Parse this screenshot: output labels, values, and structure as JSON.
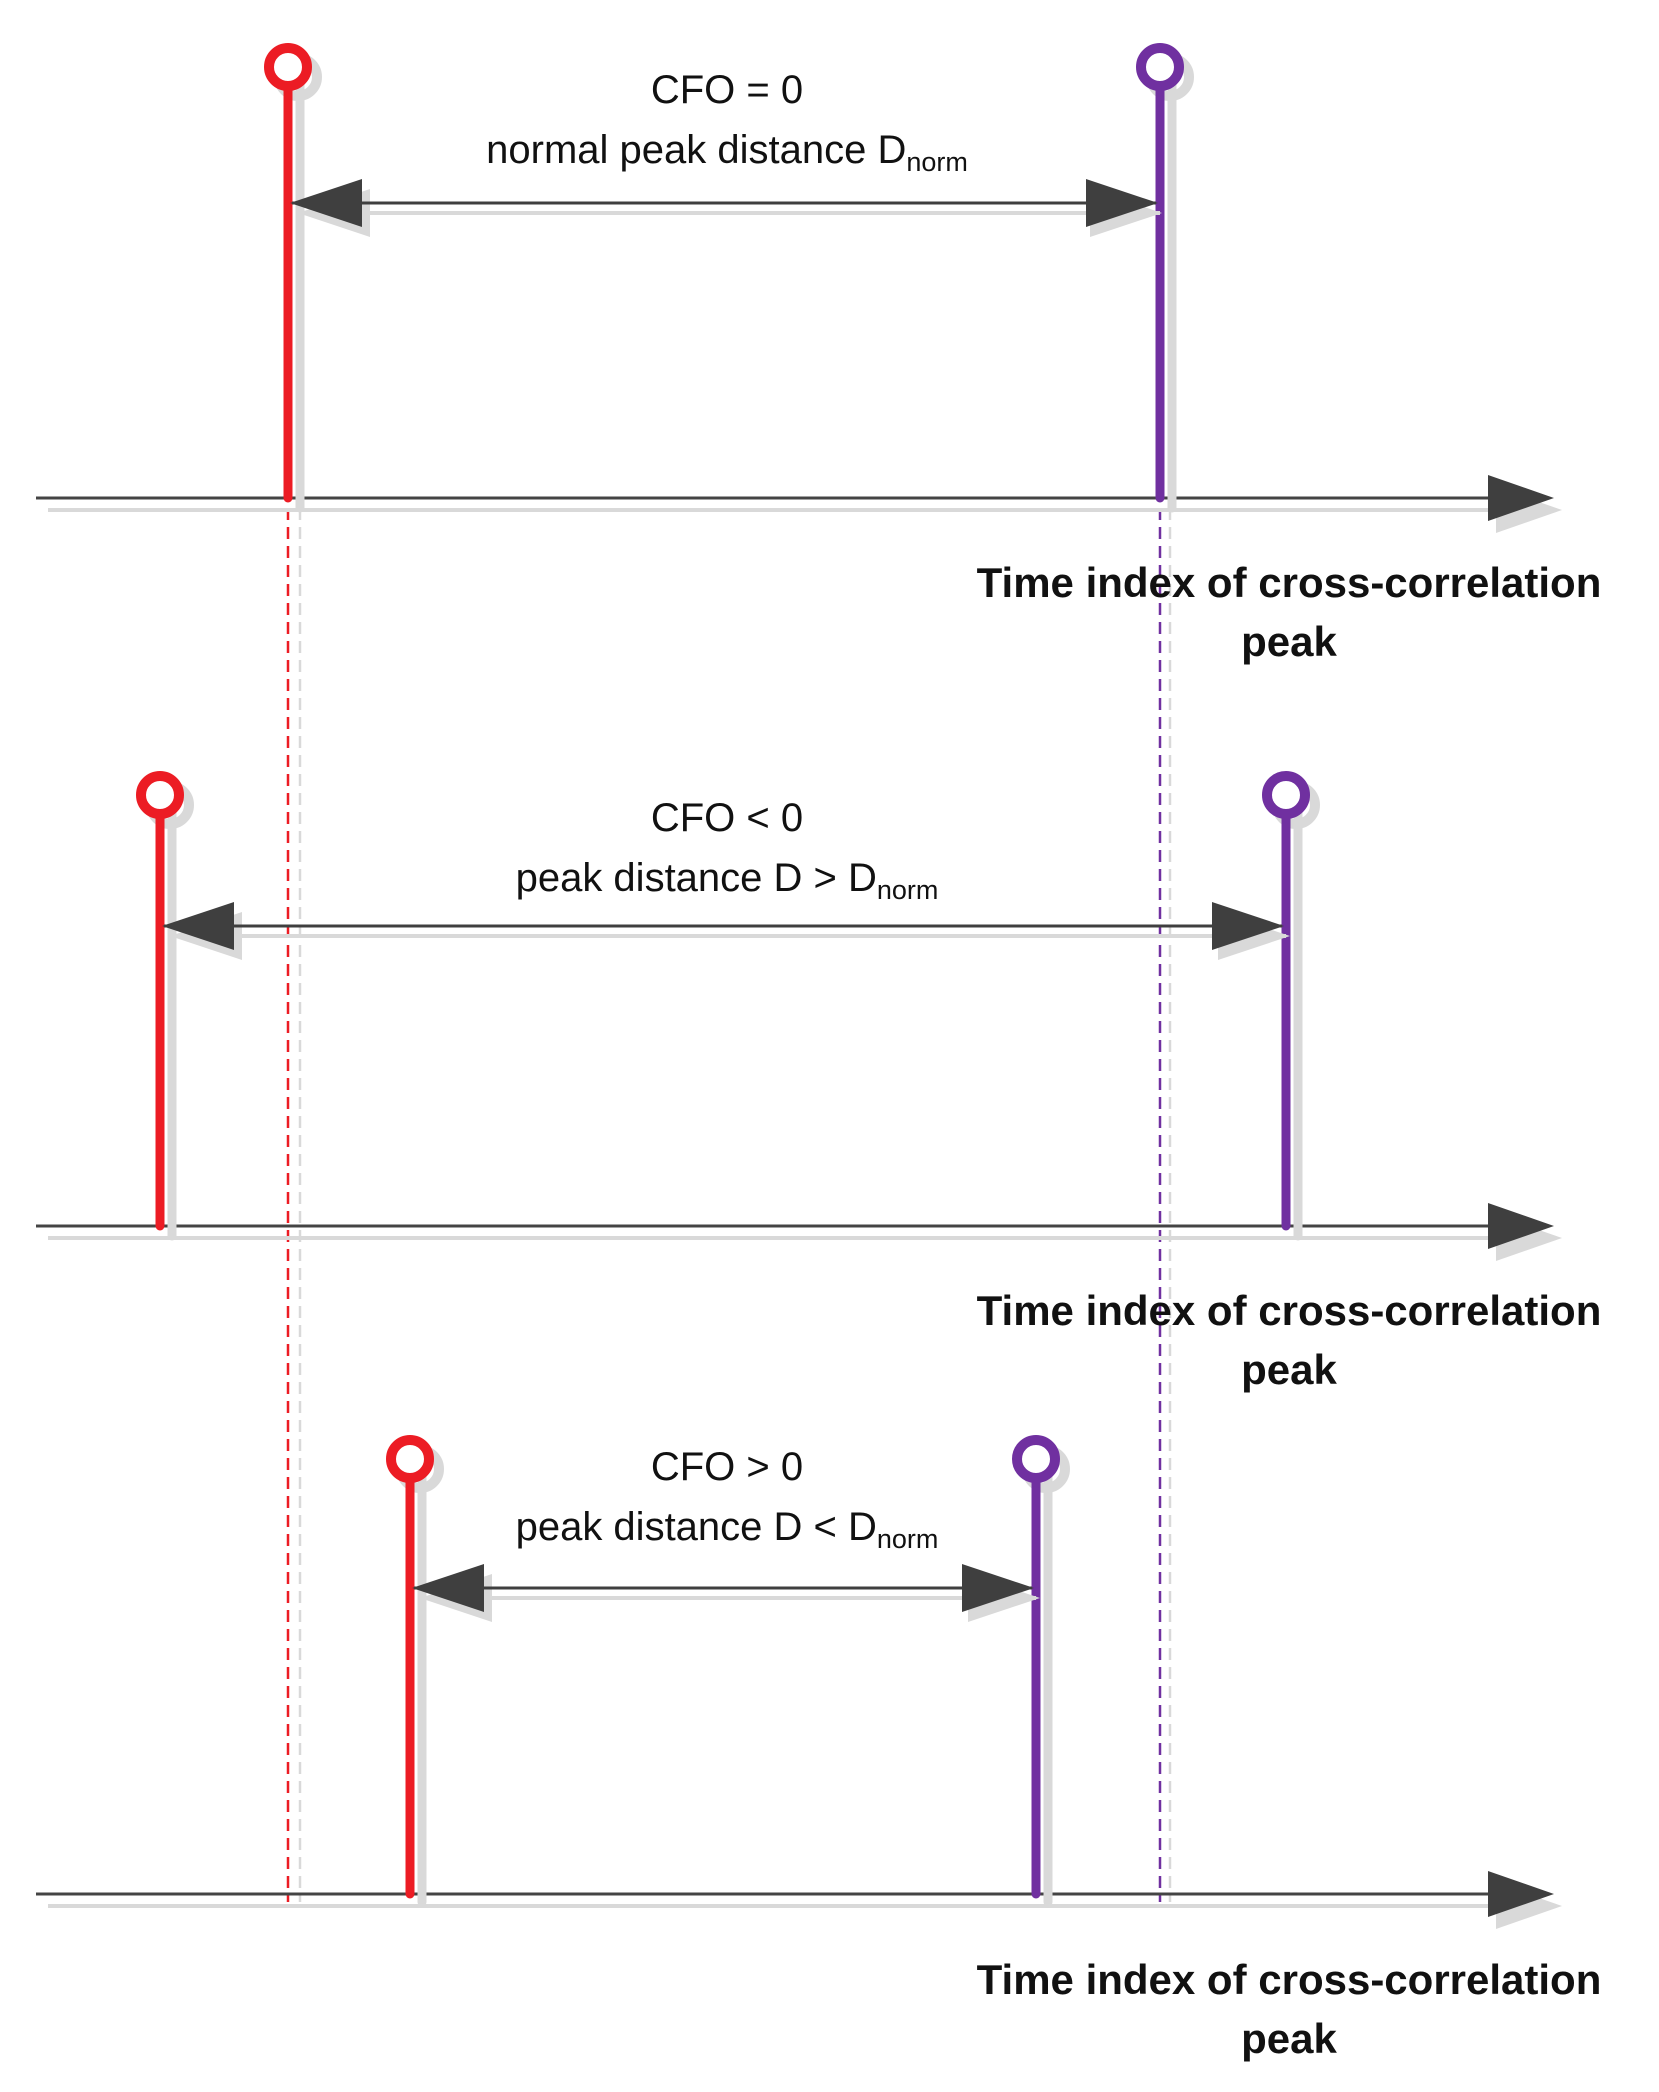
{
  "colors": {
    "first_peak": "#ec1c24",
    "second_peak": "#7030a0",
    "axis": "#444444",
    "arrow": "#3f3f3f",
    "shadow": "#d9d9d9",
    "text": "#111111",
    "background": "#ffffff"
  },
  "panels": [
    {
      "id": "cfo-zero",
      "line1": "CFO = 0",
      "line2_main": "normal peak distance D",
      "line2_sub": "norm",
      "axis_label_line1": "Time index of cross-correlation",
      "axis_label_line2": "peak"
    },
    {
      "id": "cfo-negative",
      "line1": "CFO < 0",
      "line2_main": "peak distance D > D",
      "line2_sub": "norm",
      "axis_label_line1": "Time index of cross-correlation",
      "axis_label_line2": "peak"
    },
    {
      "id": "cfo-positive",
      "line1": "CFO > 0",
      "line2_main": "peak distance D < D",
      "line2_sub": "norm",
      "axis_label_line1": "Time index of cross-correlation",
      "axis_label_line2": "peak"
    }
  ]
}
